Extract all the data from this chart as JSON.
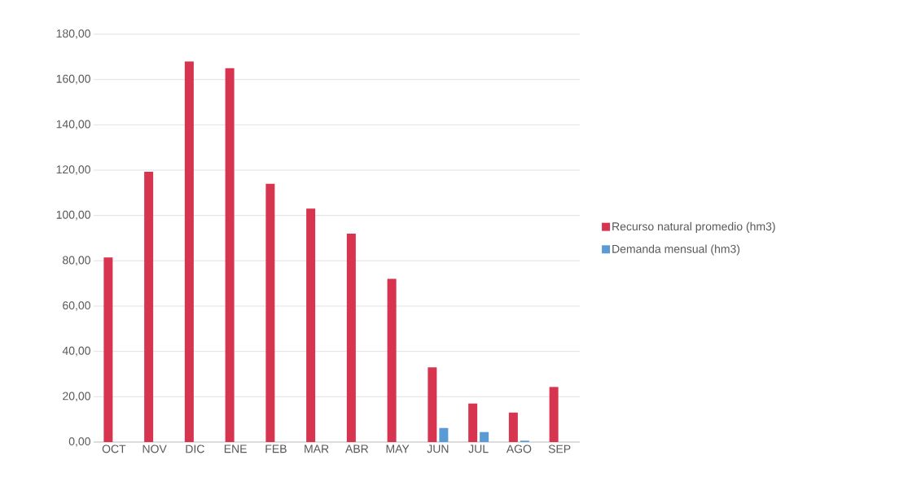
{
  "chart_data": {
    "type": "bar",
    "categories": [
      "OCT",
      "NOV",
      "DIC",
      "ENE",
      "FEB",
      "MAR",
      "ABR",
      "MAY",
      "JUN",
      "JUL",
      "AGO",
      "SEP"
    ],
    "series": [
      {
        "name": "Recurso natural promedio (hm3)",
        "color": "#d6344f",
        "values": [
          81.5,
          119.3,
          168,
          165,
          114,
          103,
          92,
          72,
          33,
          17,
          13,
          24.3
        ]
      },
      {
        "name": "Demanda mensual (hm3)",
        "color": "#5b9bd5",
        "values": [
          null,
          null,
          null,
          null,
          null,
          null,
          null,
          null,
          6.2,
          4.4,
          0.6,
          null
        ]
      }
    ],
    "ylim": [
      0,
      180
    ],
    "yticks": [
      {
        "value": 0,
        "label": "0,00"
      },
      {
        "value": 20,
        "label": "20,00"
      },
      {
        "value": 40,
        "label": "40,00"
      },
      {
        "value": 60,
        "label": "60,00"
      },
      {
        "value": 80,
        "label": "80,00"
      },
      {
        "value": 100,
        "label": "100,00"
      },
      {
        "value": 120,
        "label": "120,00"
      },
      {
        "value": 140,
        "label": "140,00"
      },
      {
        "value": 160,
        "label": "160,00"
      },
      {
        "value": 180,
        "label": "180,00"
      }
    ],
    "grid": "y",
    "legend": "right"
  }
}
